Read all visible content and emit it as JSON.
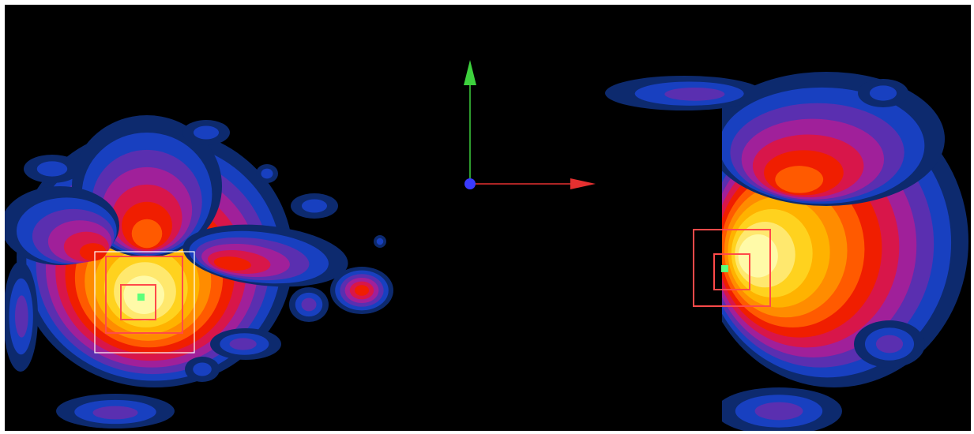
{
  "viewport": {
    "background": "#000000",
    "heatmap_palette": [
      "#0d2a6e",
      "#1840c0",
      "#5a2fb0",
      "#a0209a",
      "#d8164a",
      "#f01e00",
      "#ff5a00",
      "#ff8c00",
      "#ffb200",
      "#ffd21e",
      "#ffe86e",
      "#fffaa8"
    ]
  },
  "axis_gizmo": {
    "x_axis_color": "#e63030",
    "y_axis_color": "#3dd13d",
    "origin_color": "#3a3aff"
  },
  "overlays": {
    "outer_selection_color": "#ffffff",
    "box_color": "#ff4a4a",
    "point_color": "#5cff7a"
  }
}
